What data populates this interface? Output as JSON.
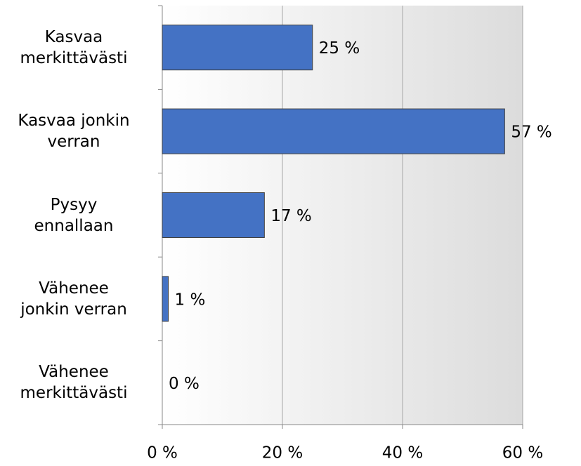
{
  "chart_data": {
    "type": "bar",
    "orientation": "horizontal",
    "categories": [
      "Kasvaa\nmerkittävästi",
      "Kasvaa jonkin\nverran",
      "Pysyy\nennallaan",
      "Vähenee\njonkin verran",
      "Vähenee\nmerkittävästi"
    ],
    "values": [
      25,
      57,
      17,
      1,
      0
    ],
    "value_labels": [
      "25 %",
      "57 %",
      "17 %",
      "1 %",
      "0 %"
    ],
    "color": "#4472c4",
    "xlim": [
      0,
      60
    ],
    "xticks": [
      {
        "value": 0,
        "label": "0 %"
      },
      {
        "value": 20,
        "label": "20 %"
      },
      {
        "value": 40,
        "label": "40 %"
      },
      {
        "value": 60,
        "label": "60 %"
      }
    ],
    "grid": true
  }
}
